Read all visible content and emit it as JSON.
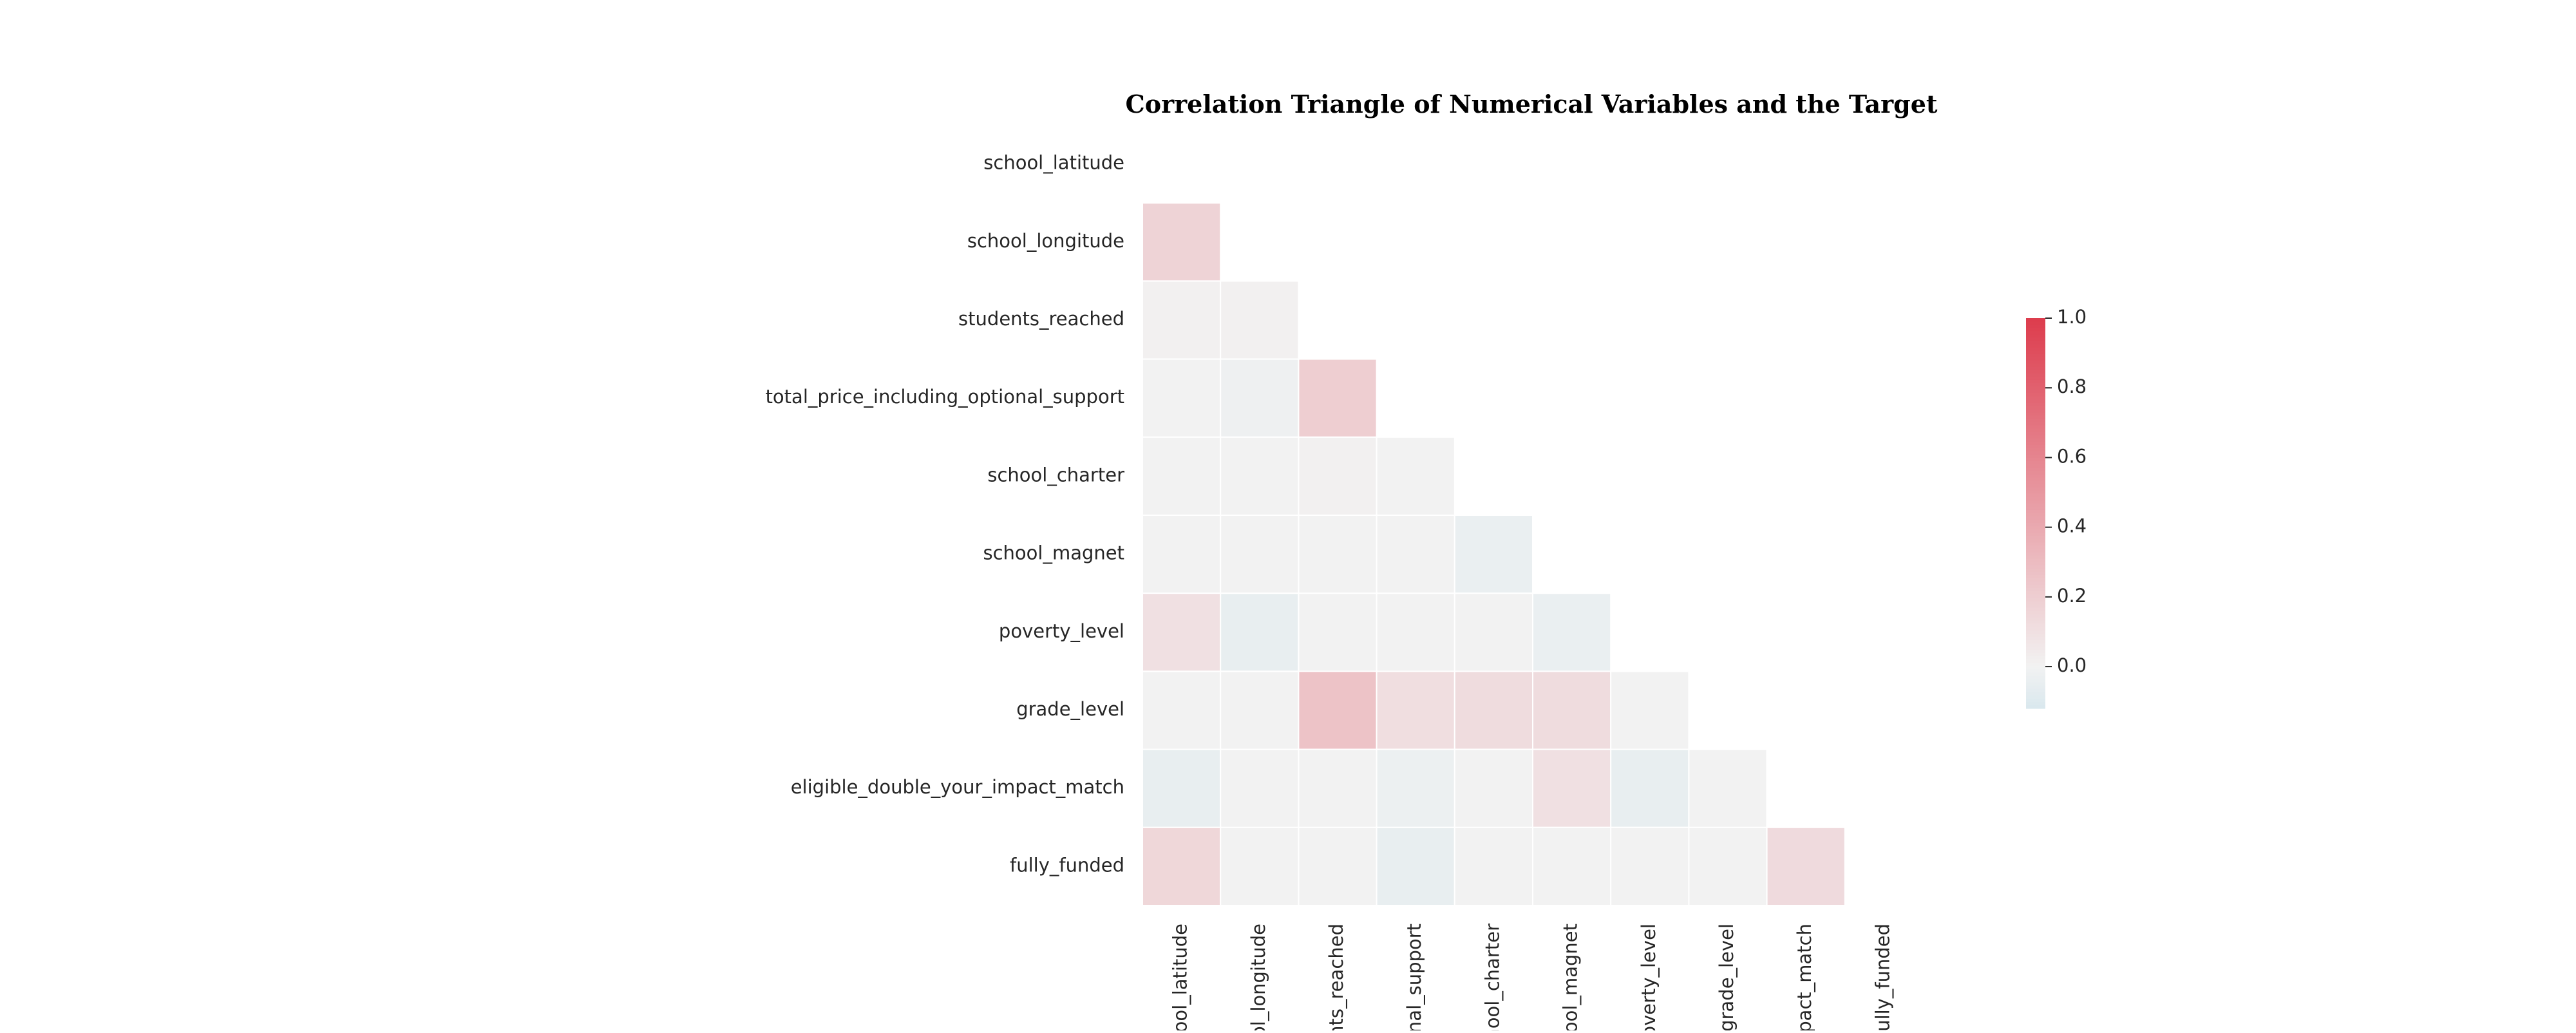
{
  "chart_data": {
    "type": "heatmap",
    "subtype": "lower-triangle correlation matrix",
    "title": "Correlation Triangle of Numerical Variables and the Target",
    "variables": [
      "school_latitude",
      "school_longitude",
      "students_reached",
      "total_price_including_optional_support",
      "school_charter",
      "school_magnet",
      "poverty_level",
      "grade_level",
      "eligible_double_your_impact_match",
      "fully_funded"
    ],
    "x_tick_labels_visible": [
      "hool_latitude",
      "ool_longitude",
      "nts_reached",
      "onal_support",
      "hool_charter",
      "hool_magnet",
      "poverty_level",
      "grade_level",
      "mpact_match",
      "fully_funded"
    ],
    "mask": "upper triangle including diagonal",
    "lower_triangle_values": [
      [],
      [
        0.17
      ],
      [
        0.01,
        0.01
      ],
      [
        0.0,
        -0.02,
        0.2
      ],
      [
        0.0,
        0.0,
        0.01,
        0.0
      ],
      [
        0.0,
        0.0,
        0.0,
        0.0,
        -0.04
      ],
      [
        0.1,
        -0.05,
        0.0,
        0.0,
        0.0,
        -0.04
      ],
      [
        0.0,
        0.0,
        0.26,
        0.11,
        0.12,
        0.12,
        0.0
      ],
      [
        -0.05,
        0.0,
        0.0,
        -0.03,
        0.0,
        0.1,
        -0.05,
        0.0
      ],
      [
        0.15,
        0.0,
        0.0,
        -0.05,
        0.0,
        0.0,
        0.0,
        0.0,
        0.13
      ]
    ],
    "colorbar": {
      "min": -0.12,
      "max": 1.0,
      "ticks": [
        "0.0",
        "0.2",
        "0.4",
        "0.6",
        "0.8",
        "1.0"
      ],
      "tick_values": [
        0.0,
        0.2,
        0.4,
        0.6,
        0.8,
        1.0
      ],
      "placement": "right"
    },
    "colors": {
      "high": "#dd3c4d",
      "center": "#f2f2f2",
      "low": "#d9e8ee",
      "cell_border": "#ffffff",
      "text": "#262626",
      "title": "#262626"
    },
    "grid": false
  }
}
